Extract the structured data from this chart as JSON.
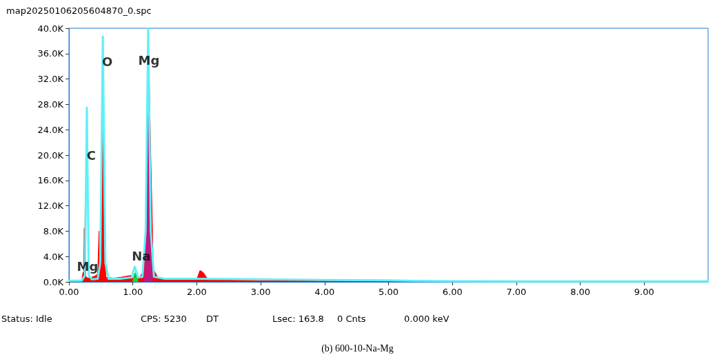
{
  "chart_data": {
    "type": "area",
    "title": "map20250106205604870_0.spc",
    "xlim": [
      0,
      10
    ],
    "ylim": [
      0,
      40000
    ],
    "xticks": [
      {
        "value": 0,
        "label": "0.00"
      },
      {
        "value": 1,
        "label": "1.00"
      },
      {
        "value": 2,
        "label": "2.00"
      },
      {
        "value": 3,
        "label": "3.00"
      },
      {
        "value": 4,
        "label": "4.00"
      },
      {
        "value": 5,
        "label": "5.00"
      },
      {
        "value": 6,
        "label": "6.00"
      },
      {
        "value": 7,
        "label": "7.00"
      },
      {
        "value": 8,
        "label": "8.00"
      },
      {
        "value": 9,
        "label": "9.00"
      }
    ],
    "yticks": [
      {
        "value": 0,
        "label": "0.0K"
      },
      {
        "value": 4000,
        "label": "4.0K"
      },
      {
        "value": 8000,
        "label": "8.0K"
      },
      {
        "value": 12000,
        "label": "12.0K"
      },
      {
        "value": 16000,
        "label": "16.0K"
      },
      {
        "value": 20000,
        "label": "20.0K"
      },
      {
        "value": 24000,
        "label": "24.0K"
      },
      {
        "value": 28000,
        "label": "28.0K"
      },
      {
        "value": 32000,
        "label": "32.0K"
      },
      {
        "value": 36000,
        "label": "36.0K"
      },
      {
        "value": 40000,
        "label": "40.0K"
      }
    ],
    "grid": false,
    "marker": "none",
    "series": [
      {
        "color": "#ff0000",
        "x": [
          0,
          0.1,
          0.2,
          0.22,
          0.23,
          0.24,
          0.245,
          0.255,
          0.265,
          0.3,
          0.35,
          0.4,
          0.45,
          0.47,
          0.48,
          0.5,
          0.52,
          0.55,
          0.58,
          0.7,
          0.8,
          0.9,
          0.97,
          1.0,
          1.05,
          1.1,
          1.18,
          1.22,
          1.25,
          1.28,
          1.32,
          1.4,
          1.5,
          1.6,
          1.7,
          1.75,
          1.8,
          2.0,
          2.05,
          2.1,
          2.18,
          2.3,
          3,
          4,
          5,
          6,
          8,
          10
        ],
        "values": [
          0,
          0,
          100,
          1500,
          300,
          8500,
          500,
          14000,
          800,
          600,
          700,
          900,
          1200,
          8000,
          1500,
          8000,
          31500,
          5000,
          700,
          600,
          700,
          900,
          1000,
          500,
          1000,
          600,
          2000,
          20000,
          35000,
          20000,
          2000,
          500,
          500,
          400,
          500,
          600,
          350,
          400,
          1800,
          1500,
          300,
          300,
          200,
          150,
          100,
          80,
          50,
          40
        ]
      },
      {
        "color": "#c0187f",
        "x": [
          1.18,
          1.21,
          1.245,
          1.28,
          1.31
        ],
        "values": [
          0,
          8000,
          36000,
          8000,
          0
        ]
      },
      {
        "color": "#00e040",
        "x": [
          1.0,
          1.02,
          1.04,
          1.06,
          1.08
        ],
        "values": [
          0,
          1200,
          1500,
          1200,
          0
        ]
      },
      {
        "type": "line",
        "color": "#5ff0f8",
        "x": [
          0,
          0.2,
          0.25,
          0.28,
          0.31,
          0.36,
          0.45,
          0.49,
          0.53,
          0.57,
          0.62,
          0.8,
          0.98,
          1.03,
          1.08,
          1.15,
          1.2,
          1.24,
          1.28,
          1.33,
          1.5,
          2.0,
          3.0,
          4.0,
          5.0,
          5.4,
          6,
          8,
          10
        ],
        "values": [
          200,
          200,
          1000,
          27500,
          1000,
          400,
          500,
          3000,
          38700,
          3000,
          500,
          500,
          700,
          2400,
          700,
          800,
          8000,
          40000,
          8000,
          800,
          500,
          500,
          400,
          300,
          250,
          150,
          100,
          80,
          80
        ]
      }
    ],
    "annotations": [
      {
        "text": "C",
        "x": 0.35,
        "y": 19900
      },
      {
        "text": "O",
        "x": 0.6,
        "y": 34700
      },
      {
        "text": "Mg",
        "x": 1.25,
        "y": 35000
      },
      {
        "text": "Na",
        "x": 1.13,
        "y": 4100
      },
      {
        "text": "Mg",
        "x": 0.29,
        "y": 2500
      },
      "Status: Idle",
      "CPS: 5230",
      "DT",
      "Lsec: 163.8",
      "0 Cnts",
      "0.000 keV",
      "(b) 600-10-Na-Mg"
    ]
  }
}
